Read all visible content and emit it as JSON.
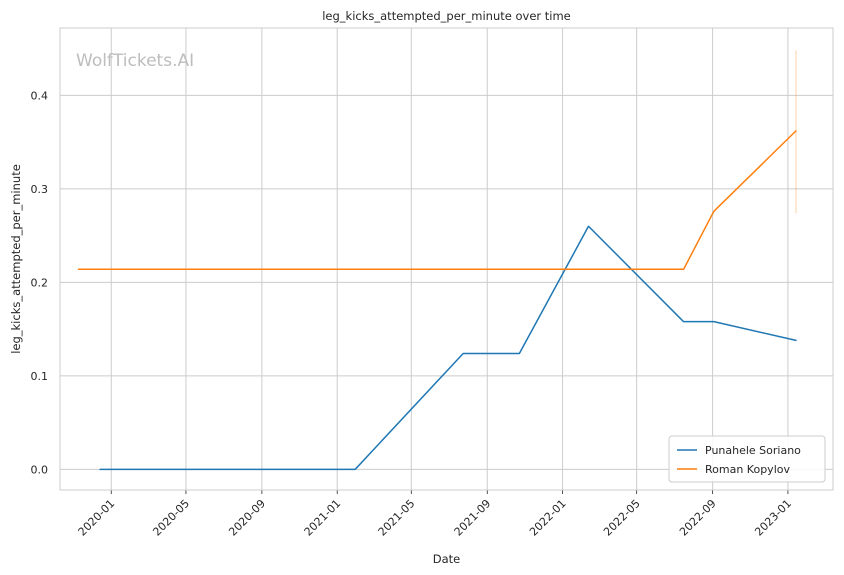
{
  "chart_data": {
    "type": "line",
    "title": "leg_kicks_attempted_per_minute over time",
    "xlabel": "Date",
    "ylabel": "leg_kicks_attempted_per_minute",
    "watermark": "WolfTickets.AI",
    "x_tick_labels": [
      "2020-01",
      "2020-05",
      "2020-09",
      "2021-01",
      "2021-05",
      "2021-09",
      "2022-01",
      "2022-05",
      "2022-09",
      "2023-01"
    ],
    "y_ticks": [
      0.0,
      0.1,
      0.2,
      0.3,
      0.4
    ],
    "y_tick_labels": [
      "0.0",
      "0.1",
      "0.2",
      "0.3",
      "0.4"
    ],
    "xlim": [
      "2019-10-10",
      "2023-03-15"
    ],
    "ylim": [
      -0.022,
      0.472
    ],
    "grid": true,
    "legend_position": "lower-right",
    "series": [
      {
        "name": "Punahele Soriano",
        "color": "#1f77b4",
        "points": [
          {
            "x": "2019-12-14",
            "y": 0.0
          },
          {
            "x": "2021-01-30",
            "y": 0.0
          },
          {
            "x": "2021-07-24",
            "y": 0.124
          },
          {
            "x": "2021-10-23",
            "y": 0.124
          },
          {
            "x": "2022-02-12",
            "y": 0.26
          },
          {
            "x": "2022-07-16",
            "y": 0.158
          },
          {
            "x": "2022-09-03",
            "y": 0.158
          },
          {
            "x": "2023-01-14",
            "y": 0.138
          }
        ]
      },
      {
        "name": "Roman Kopylov",
        "color": "#ff7f0e",
        "points": [
          {
            "x": "2019-11-09",
            "y": 0.214
          },
          {
            "x": "2022-07-16",
            "y": 0.214
          },
          {
            "x": "2022-09-03",
            "y": 0.276
          },
          {
            "x": "2023-01-14",
            "y": 0.362
          }
        ],
        "error_band": {
          "x": "2023-01-14",
          "low": 0.274,
          "high": 0.448
        }
      }
    ]
  }
}
